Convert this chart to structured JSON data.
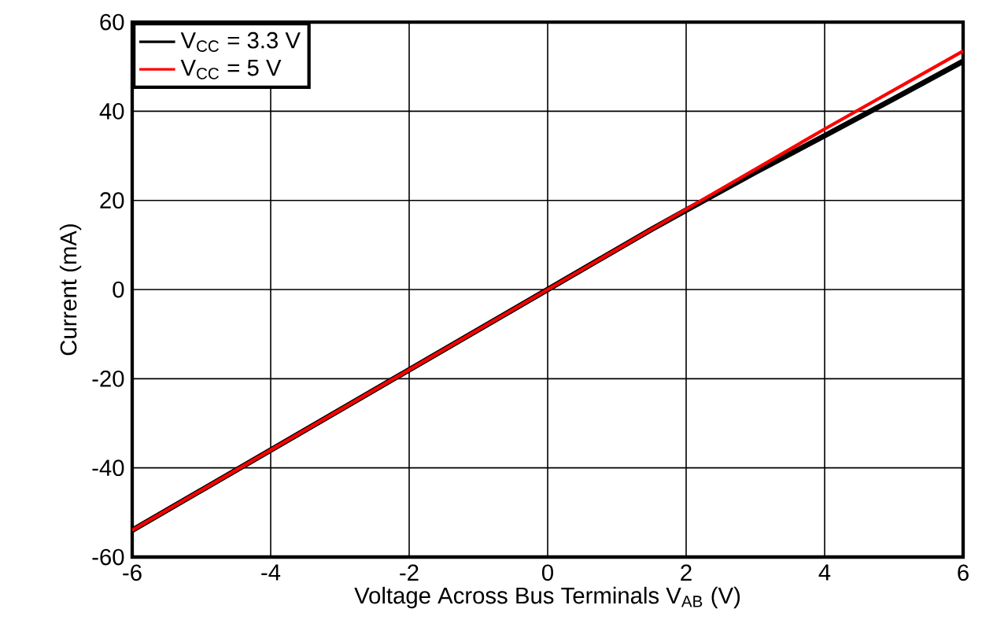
{
  "chart_data": {
    "type": "line",
    "xlabel": "Voltage Across Bus Terminals V$_{AB}$ (V)",
    "ylabel": "Current (mA)",
    "xlim": [
      -6,
      6
    ],
    "xticks": [
      -6,
      -4,
      -2,
      0,
      2,
      4,
      6
    ],
    "ylim": [
      -60,
      60
    ],
    "yticks": [
      -60,
      -40,
      -20,
      0,
      20,
      40,
      60
    ],
    "grid": true,
    "legend": "top left",
    "line_style": "solid",
    "marker": "none",
    "series": [
      {
        "name": "V$_{CC}$ = 3.3 V",
        "color": "#000000",
        "x": [
          -6,
          -4,
          -2,
          0,
          1.5,
          2,
          3,
          4,
          5,
          6
        ],
        "values": [
          -54,
          -36,
          -18,
          0,
          13.5,
          17.8,
          26.3,
          34.5,
          42.8,
          51.2
        ]
      },
      {
        "name": "V$_{CC}$ = 5 V",
        "color": "#ff0000",
        "x": [
          -6,
          -4,
          -2,
          0,
          2,
          4,
          6
        ],
        "values": [
          -54,
          -36,
          -18,
          0,
          18,
          36,
          53.5
        ]
      }
    ]
  }
}
